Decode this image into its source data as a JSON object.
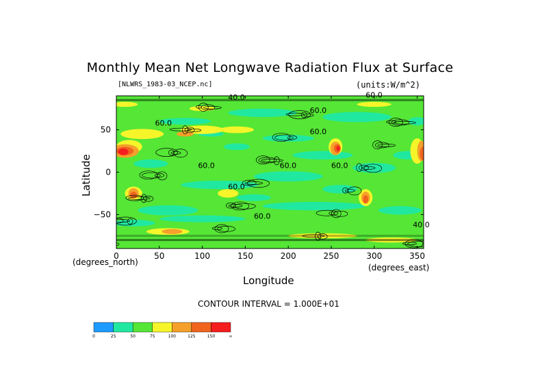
{
  "chart_data": {
    "type": "heatmap",
    "title": "Monthly Mean Net Longwave Radiation Flux at Surface",
    "subtitle_left": "[NLWRS_1983-03_NCEP.nc]",
    "subtitle_right": "(units:W/m^2)",
    "xlabel": "Longitude",
    "ylabel": "Latitude",
    "x_unit_label": "(degrees_east)",
    "y_unit_label": "(degrees_north)",
    "xlim": [
      0,
      357.5
    ],
    "ylim": [
      -90,
      90
    ],
    "xticks": [
      "0",
      "50",
      "100",
      "150",
      "200",
      "250",
      "300",
      "350"
    ],
    "xtick_values": [
      0,
      50,
      100,
      150,
      200,
      250,
      300,
      350
    ],
    "yticks": [
      "50",
      "0",
      "−50"
    ],
    "ytick_values": [
      50,
      0,
      -50
    ],
    "contour_interval_text": "CONTOUR INTERVAL = 1.000E+01",
    "contour_labels": [
      "40.0",
      "60.0",
      "60.0",
      "60.0",
      "60.0",
      "60.0",
      "60.0",
      "60.0",
      "60.0",
      "40.0",
      "60.0"
    ],
    "colorbar": {
      "levels": [
        "0",
        "25",
        "50",
        "75",
        "100",
        "125",
        "150",
        "∞"
      ],
      "level_values": [
        0,
        25,
        50,
        75,
        100,
        125,
        150
      ],
      "colors": [
        "#1e9bff",
        "#21e8a0",
        "#55e636",
        "#f5f52a",
        "#f5a02a",
        "#f0641e",
        "#f51e1e"
      ]
    },
    "colors": {
      "background_field": "#55e636",
      "low_field": "#21e8a0",
      "high_field": "#f5f52a"
    }
  }
}
